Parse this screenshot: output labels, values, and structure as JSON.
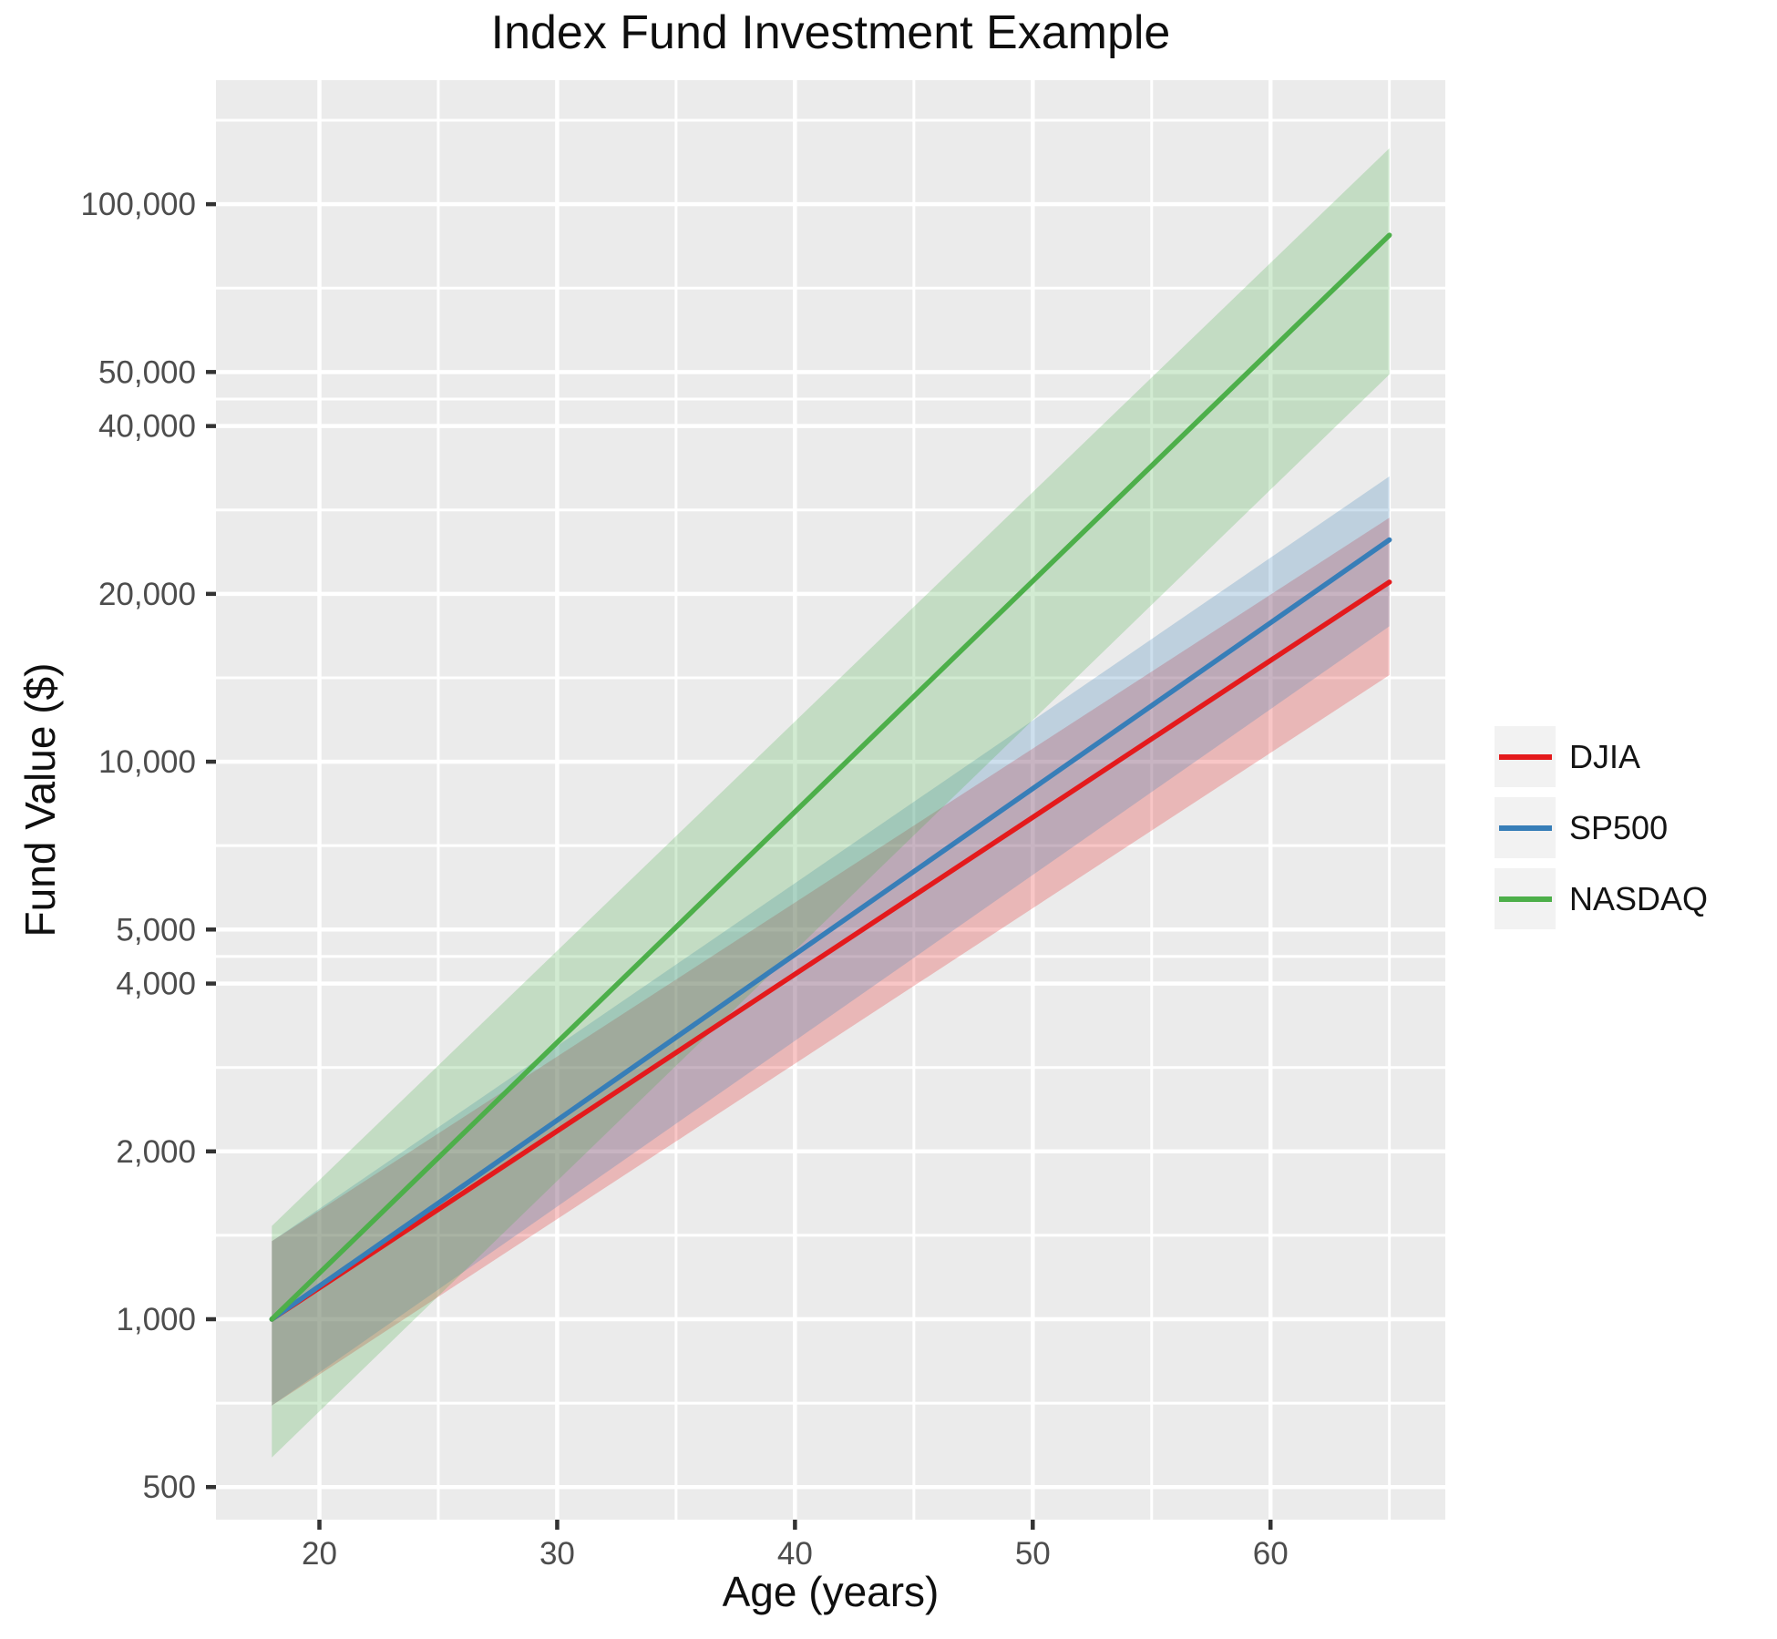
{
  "chart_data": {
    "type": "line",
    "title": "Index Fund Investment Example",
    "xlabel": "Age (years)",
    "ylabel": "Fund Value ($)",
    "legend_position": "right",
    "panel_bg": "#EBEBEB",
    "grid_color": "#FFFFFF",
    "tick_mark_color": "#333333",
    "tick_label_color": "#4D4D4D",
    "legend_key_bg": "#F2F2F2",
    "ribbon_opacity": 0.25,
    "line_width": 5.5,
    "interpolation": "straight lines on log10 y-scale from age 18 to age 65",
    "x_axis": {
      "range": [
        15.65,
        67.35
      ],
      "ticks": [
        {
          "value": 20,
          "label": "20"
        },
        {
          "value": 30,
          "label": "30"
        },
        {
          "value": 40,
          "label": "40"
        },
        {
          "value": 50,
          "label": "50"
        },
        {
          "value": 60,
          "label": "60"
        }
      ],
      "minor_gridlines": [
        25,
        35,
        45,
        55,
        65
      ]
    },
    "y_axis": {
      "scale": "log10",
      "range": [
        437,
        166900
      ],
      "ticks": [
        {
          "value": 100000,
          "label": "100,000"
        },
        {
          "value": 50000,
          "label": "50,000"
        },
        {
          "value": 40000,
          "label": "40,000"
        },
        {
          "value": 20000,
          "label": "20,000"
        },
        {
          "value": 10000,
          "label": "10,000"
        },
        {
          "value": 5000,
          "label": "5,000"
        },
        {
          "value": 4000,
          "label": "4,000"
        },
        {
          "value": 2000,
          "label": "2,000"
        },
        {
          "value": 1000,
          "label": "1,000"
        },
        {
          "value": 500,
          "label": "500"
        }
      ],
      "minor_gridlines": [
        707,
        1414,
        2828,
        4472,
        7071,
        14142,
        28284,
        44721,
        70711,
        141421
      ]
    },
    "series": [
      {
        "name": "DJIA",
        "color": "#E41A1C",
        "ages": [
          18,
          65
        ],
        "mean": [
          1000,
          21000
        ],
        "band_low": [
          700,
          14300
        ],
        "band_high": [
          1380,
          27400
        ]
      },
      {
        "name": "SP500",
        "color": "#377EB8",
        "ages": [
          18,
          65
        ],
        "mean": [
          1000,
          25000
        ],
        "band_low": [
          700,
          17500
        ],
        "band_high": [
          1380,
          32500
        ]
      },
      {
        "name": "NASDAQ",
        "color": "#4DAF4A",
        "ages": [
          18,
          65
        ],
        "mean": [
          1000,
          88000
        ],
        "band_low": [
          565,
          49500
        ],
        "band_high": [
          1470,
          126000
        ]
      }
    ]
  }
}
